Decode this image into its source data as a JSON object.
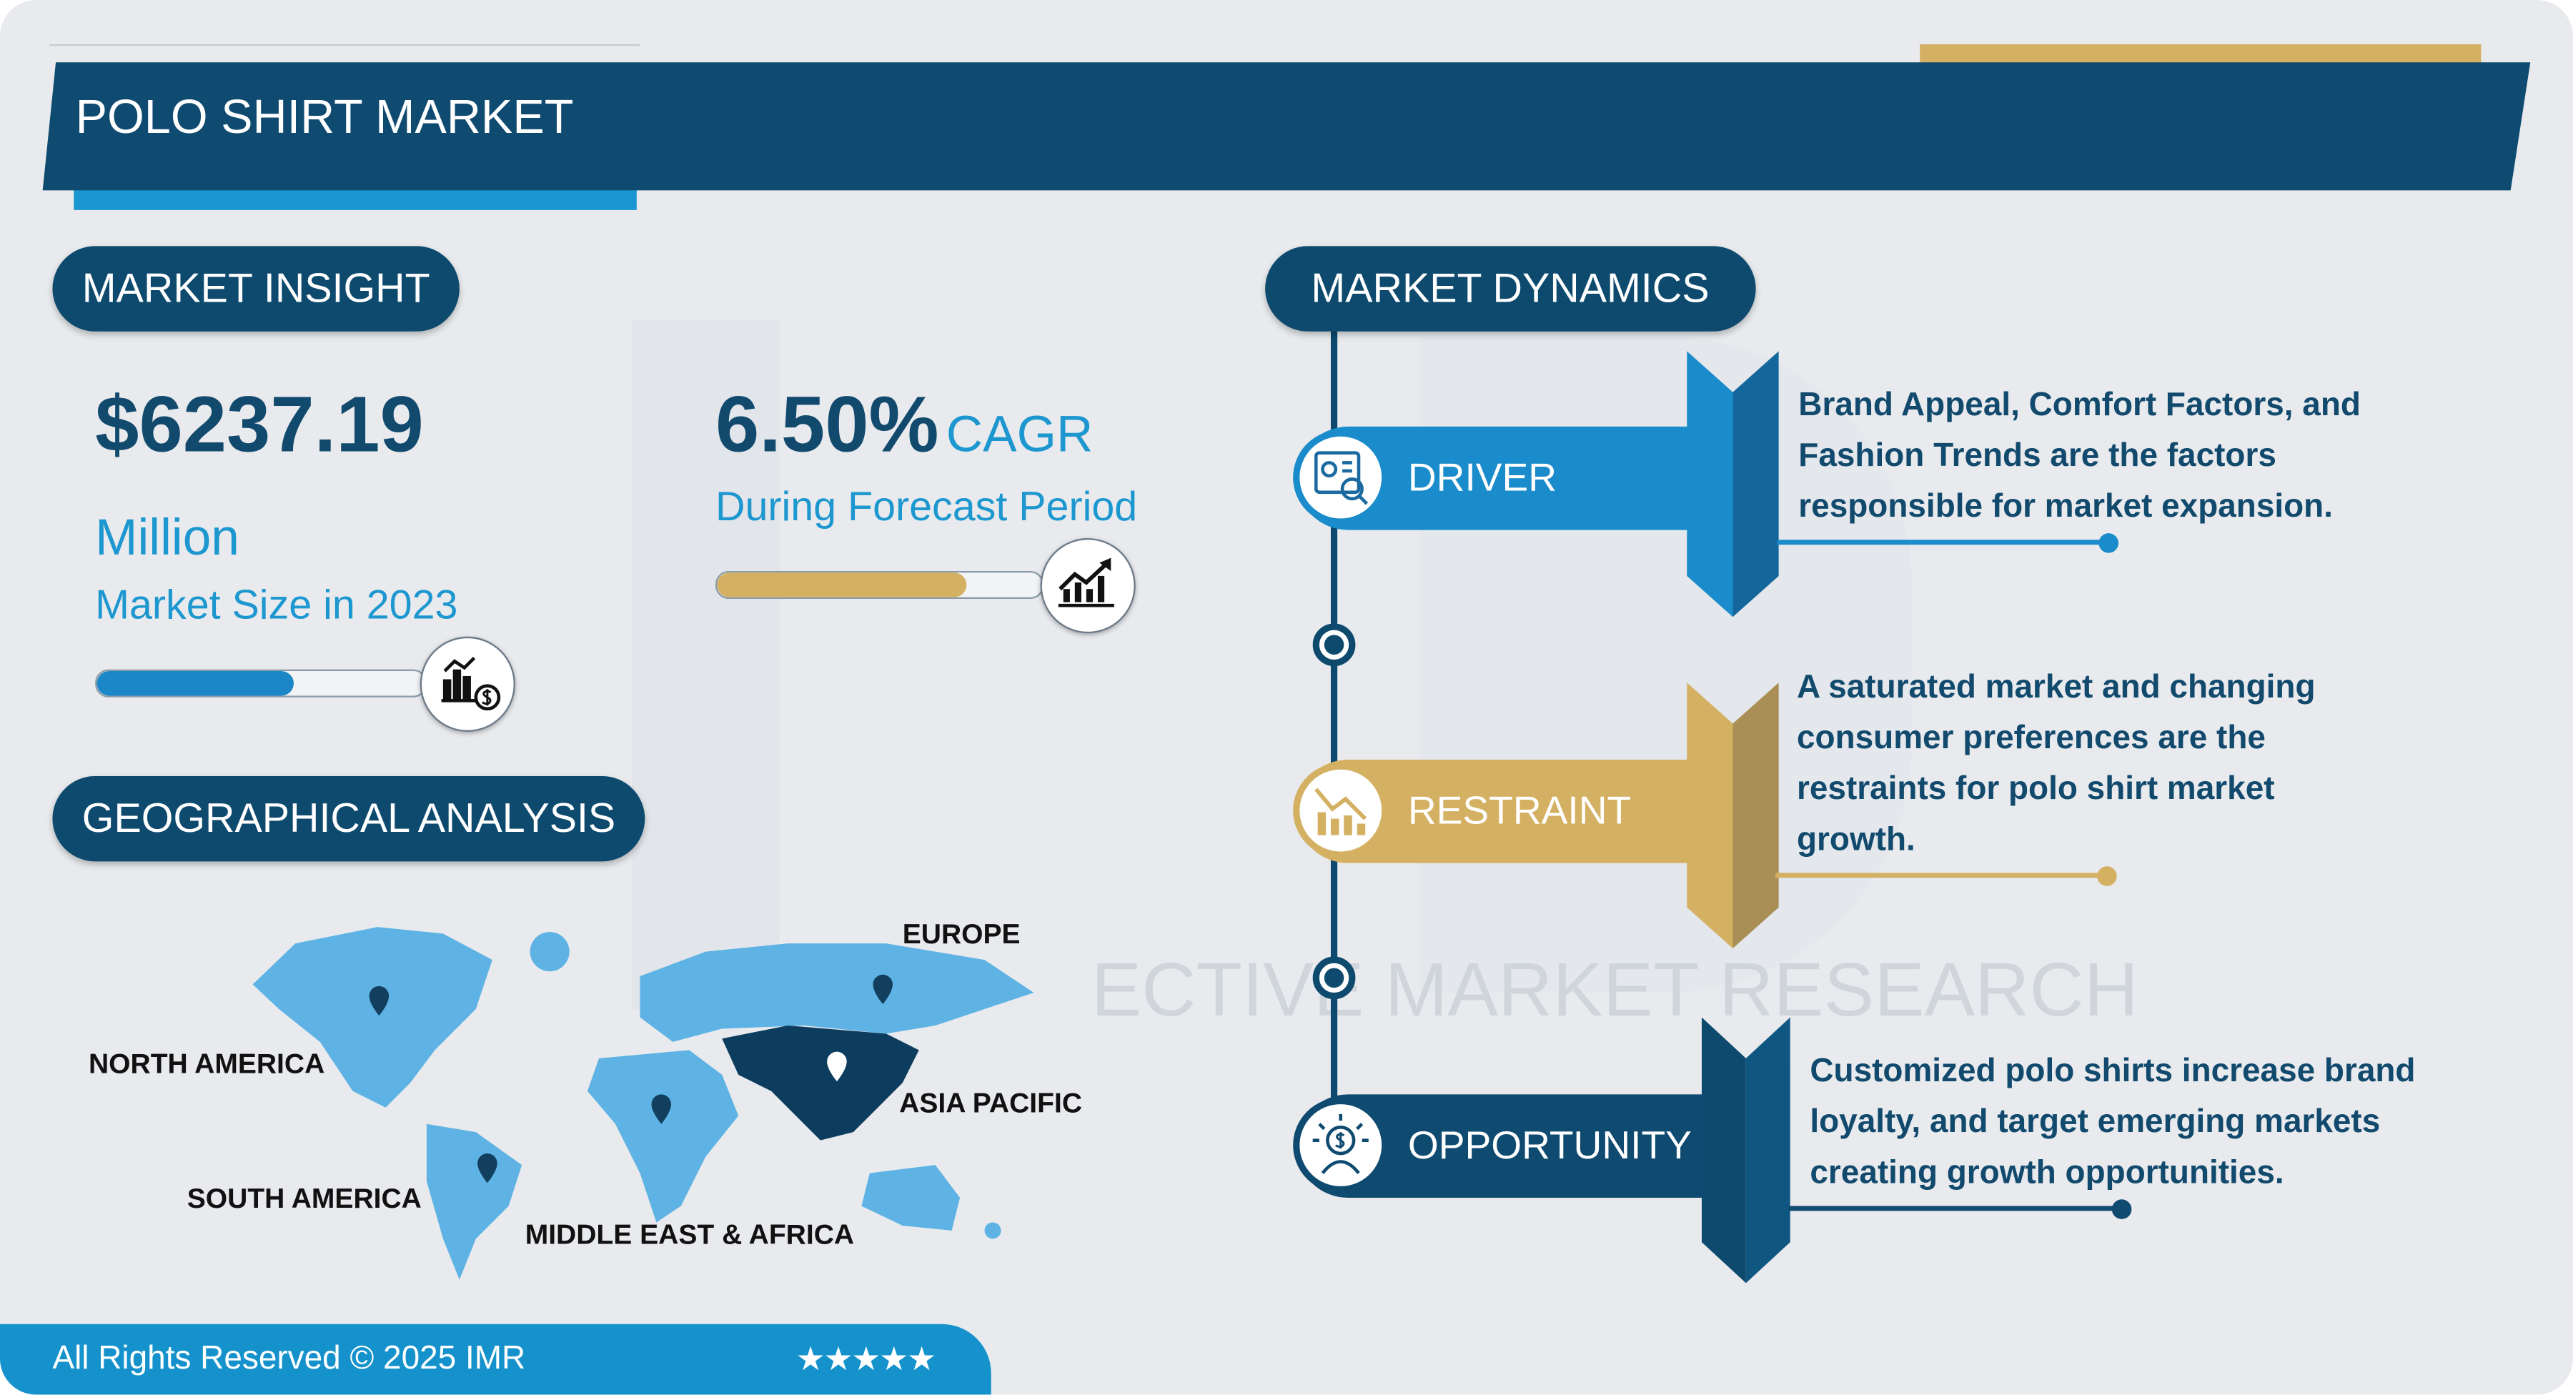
{
  "header": {
    "title": "POLO SHIRT MARKET"
  },
  "colors": {
    "navy": "#0f4a70",
    "cyan": "#1d97cf",
    "gold": "#d4b063",
    "driver_blue": "#1a8bcb",
    "background": "#e8eaed"
  },
  "market_insight": {
    "label": "MARKET INSIGHT",
    "market_size": "$6237.19",
    "unit": "Million",
    "size_caption": "Market Size in 2023",
    "size_bar_fill_percent": 60,
    "size_icon": "bar-chart-dollar-icon",
    "cagr_value": "6.50%",
    "cagr_label": "CAGR",
    "cagr_caption": "During Forecast Period",
    "cagr_bar_fill_percent": 77,
    "cagr_icon": "growth-chart-icon"
  },
  "geographical_analysis": {
    "label": "GEOGRAPHICAL ANALYSIS",
    "regions": [
      "NORTH AMERICA",
      "SOUTH AMERICA",
      "EUROPE",
      "ASIA PACIFIC",
      "MIDDLE EAST & AFRICA"
    ],
    "highlighted_region": "ASIA PACIFIC"
  },
  "market_dynamics": {
    "label": "MARKET DYNAMICS",
    "items": [
      {
        "title": "DRIVER",
        "icon": "analytics-report-icon",
        "text": [
          "Brand Appeal, Comfort Factors, and",
          "Fashion Trends are the factors",
          "responsible for market expansion."
        ]
      },
      {
        "title": "RESTRAINT",
        "icon": "declining-chart-icon",
        "text": [
          "A saturated market and changing",
          "consumer preferences are the",
          "restraints for polo shirt market",
          "growth."
        ]
      },
      {
        "title": "OPPORTUNITY",
        "icon": "idea-dollar-icon",
        "text": [
          "Customized polo shirts increase brand",
          "loyalty, and target emerging markets",
          "creating growth opportunities."
        ]
      }
    ]
  },
  "footer": {
    "copyright": "All Rights Reserved © 2025 IMR",
    "rating": "★★★★★"
  },
  "watermark": {
    "text": "ECTIVE MARKET RESEARCH"
  }
}
